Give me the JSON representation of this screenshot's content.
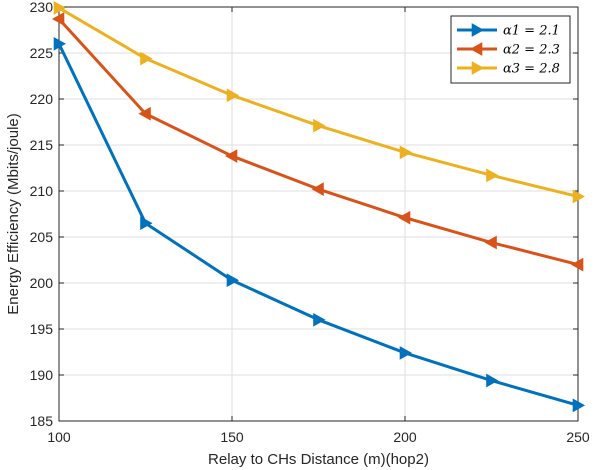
{
  "chart_data": {
    "type": "line",
    "title": "",
    "xlabel": "Relay to CHs Distance (m)(hop2)",
    "ylabel": "Energy Efficiency (Mbits/joule)",
    "x": [
      100,
      125,
      150,
      175,
      200,
      225,
      250
    ],
    "xlim": [
      100,
      250
    ],
    "ylim": [
      185,
      230
    ],
    "xticks": [
      "100",
      "150",
      "200",
      "250"
    ],
    "yticks": [
      "185",
      "190",
      "195",
      "200",
      "205",
      "210",
      "215",
      "220",
      "225",
      "230"
    ],
    "grid": true,
    "legend_position": "top-right",
    "series": [
      {
        "name": "α1 = 2.1",
        "color": "#0072BD",
        "marker": "triangle-right",
        "values": [
          226.0,
          206.5,
          200.3,
          196.0,
          192.4,
          189.4,
          186.7
        ]
      },
      {
        "name": "α2 = 2.3",
        "color": "#D95319",
        "marker": "triangle-left",
        "values": [
          228.7,
          218.4,
          213.8,
          210.2,
          207.1,
          204.4,
          202.0
        ]
      },
      {
        "name": "α3 = 2.8",
        "color": "#EDB120",
        "marker": "triangle-right",
        "values": [
          229.9,
          224.4,
          220.4,
          217.1,
          214.2,
          211.7,
          209.4
        ]
      }
    ]
  }
}
